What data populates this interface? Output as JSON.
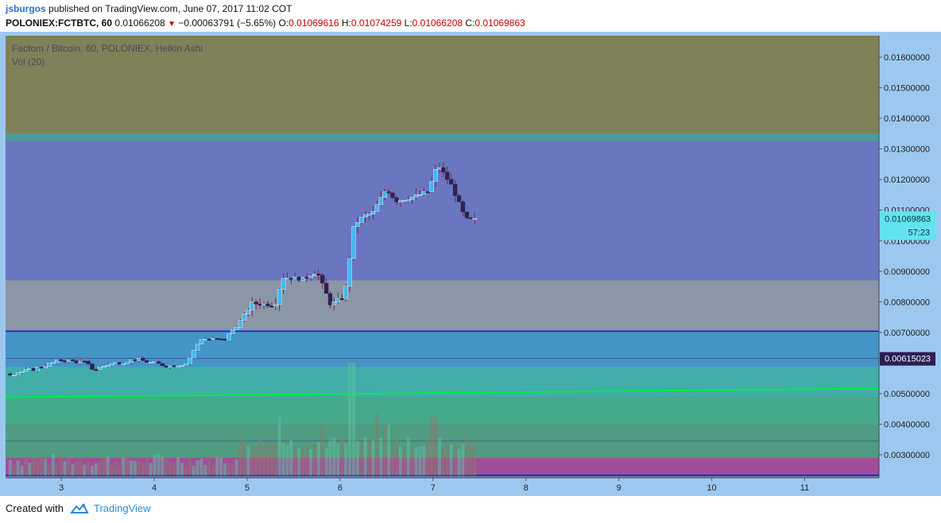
{
  "header": {
    "username": "jsburgos",
    "published_text": "published on TradingView.com, June 07, 2017 11:02 COT",
    "symbol": "POLONIEX:FCTBTC, 60",
    "last": "0.01066208",
    "change": "−0.00063791 (−5.65%)",
    "o_label": "O:",
    "o_value": "0.01069616",
    "h_label": "H:",
    "h_value": "0.01074259",
    "l_label": "L:",
    "l_value": "0.01066208",
    "c_label": "C:",
    "c_value": "0.01069863"
  },
  "legend": {
    "title": "Factom / Bitcoin, 60, POLONIEX, Heikin Ashi",
    "volume": "Vol (20)"
  },
  "badges": {
    "price": "0.01069863",
    "countdown": "57:23",
    "line_price": "0.00615023"
  },
  "footer": {
    "created_with": "Created with",
    "brand": "TradingView"
  },
  "colors": {
    "zone_top": "#808059",
    "zone_purple": "#6b76c0",
    "zone_gray": "#8b97a6",
    "zone_blue": "#4494c8",
    "zone_teal": "#42ada9",
    "zone_green": "#45a98c",
    "zone_pink": "#a04e9b",
    "bull": "#40b8f0",
    "bear": "#2b2450",
    "wick": "#8a2040",
    "green_line": "#00ee44",
    "blue_line": "#1020cc",
    "axis_bg": "#9cc8f0",
    "price_badge": "#62e4ee",
    "line_badge": "#2d1e56"
  },
  "chart_data": {
    "type": "candlestick",
    "style": "Heikin Ashi",
    "x_axis": {
      "ticks": [
        "3",
        "4",
        "5",
        "6",
        "7",
        "8",
        "9",
        "10",
        "11"
      ],
      "range": [
        2.4,
        11.8
      ]
    },
    "y_axis": {
      "ticks": [
        "0.01600000",
        "0.01500000",
        "0.01400000",
        "0.01300000",
        "0.01200000",
        "0.01100000",
        "0.01000000",
        "0.00900000",
        "0.00800000",
        "0.00700000",
        "0.00500000",
        "0.00400000",
        "0.00300000"
      ],
      "range": [
        0.00225,
        0.0167
      ]
    },
    "zones": [
      {
        "from": 0.0135,
        "to": 0.0167,
        "color": "#808059"
      },
      {
        "from": 0.0135,
        "to": 0.01325,
        "color": "#4f9a9a"
      },
      {
        "from": 0.0087,
        "to": 0.01325,
        "color": "#6b76c0"
      },
      {
        "from": 0.00704,
        "to": 0.0087,
        "color": "#8b97a6"
      },
      {
        "from": 0.00588,
        "to": 0.00704,
        "color": "#4494c8"
      },
      {
        "from": 0.0049,
        "to": 0.00588,
        "color": "#42ada9"
      },
      {
        "from": 0.004,
        "to": 0.0049,
        "color": "#45a98c"
      },
      {
        "from": 0.0029,
        "to": 0.004,
        "color": "#4f9c82"
      },
      {
        "from": 0.0023,
        "to": 0.0029,
        "color": "#a04e9b"
      }
    ],
    "horizontal_lines": [
      0.00704,
      0.00615,
      0.00345,
      0.00233
    ],
    "trend_line": {
      "x1": 2.4,
      "y1": 0.00488,
      "x2": 11.8,
      "y2": 0.00517
    },
    "keypoints": [
      {
        "x": 2.45,
        "v": 0.00565
      },
      {
        "x": 2.7,
        "v": 0.0058
      },
      {
        "x": 3.0,
        "v": 0.0061
      },
      {
        "x": 3.25,
        "v": 0.00602
      },
      {
        "x": 3.35,
        "v": 0.00578
      },
      {
        "x": 3.5,
        "v": 0.00595
      },
      {
        "x": 3.8,
        "v": 0.00612
      },
      {
        "x": 4.15,
        "v": 0.0059
      },
      {
        "x": 4.35,
        "v": 0.006
      },
      {
        "x": 4.5,
        "v": 0.0068
      },
      {
        "x": 4.75,
        "v": 0.00675
      },
      {
        "x": 4.95,
        "v": 0.00745
      },
      {
        "x": 5.05,
        "v": 0.00795
      },
      {
        "x": 5.3,
        "v": 0.0079
      },
      {
        "x": 5.38,
        "v": 0.0088
      },
      {
        "x": 5.6,
        "v": 0.00875
      },
      {
        "x": 5.75,
        "v": 0.009
      },
      {
        "x": 5.9,
        "v": 0.0079
      },
      {
        "x": 6.05,
        "v": 0.0082
      },
      {
        "x": 6.15,
        "v": 0.0105
      },
      {
        "x": 6.25,
        "v": 0.0108
      },
      {
        "x": 6.35,
        "v": 0.0109
      },
      {
        "x": 6.5,
        "v": 0.0117
      },
      {
        "x": 6.6,
        "v": 0.0113
      },
      {
        "x": 6.75,
        "v": 0.0114
      },
      {
        "x": 6.95,
        "v": 0.0116
      },
      {
        "x": 7.05,
        "v": 0.0125
      },
      {
        "x": 7.2,
        "v": 0.0118
      },
      {
        "x": 7.35,
        "v": 0.0107
      },
      {
        "x": 7.45,
        "v": 0.01069
      }
    ],
    "volume_peaks": [
      {
        "x": 5.35,
        "v": 0.52
      },
      {
        "x": 5.8,
        "v": 0.45
      },
      {
        "x": 6.13,
        "v": 1.0
      },
      {
        "x": 6.4,
        "v": 0.55
      },
      {
        "x": 6.5,
        "v": 0.45
      },
      {
        "x": 7.0,
        "v": 0.52
      }
    ],
    "volume_range": [
      0,
      1
    ]
  }
}
